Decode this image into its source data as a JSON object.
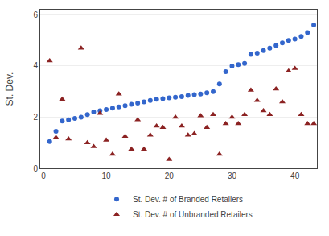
{
  "chart_data": {
    "type": "scatter",
    "ylabel": "St. Dev.",
    "series": [
      {
        "name": "St. Dev. # of Branded Retailers",
        "color": "#3366cc",
        "marker": "circle",
        "x": [
          1,
          2,
          3,
          4,
          5,
          6,
          7,
          8,
          9,
          10,
          11,
          12,
          13,
          14,
          15,
          16,
          17,
          18,
          19,
          20,
          21,
          22,
          23,
          24,
          25,
          26,
          27,
          28,
          29,
          30,
          31,
          32,
          33,
          34,
          35,
          36,
          37,
          38,
          39,
          40,
          41,
          42,
          43
        ],
        "values": [
          1.05,
          1.45,
          1.85,
          1.9,
          1.95,
          2.0,
          2.1,
          2.2,
          2.25,
          2.3,
          2.35,
          2.4,
          2.45,
          2.5,
          2.55,
          2.6,
          2.65,
          2.7,
          2.72,
          2.75,
          2.78,
          2.8,
          2.85,
          2.88,
          2.9,
          2.95,
          3.0,
          3.3,
          3.78,
          4.0,
          4.05,
          4.1,
          4.45,
          4.5,
          4.6,
          4.7,
          4.8,
          4.9,
          5.0,
          5.05,
          5.15,
          5.3,
          5.6
        ]
      },
      {
        "name": "St. Dev. # of Unbranded Retailers",
        "color": "#8b2222",
        "marker": "triangle-up",
        "x": [
          1,
          2,
          3,
          4,
          6,
          7,
          8,
          9,
          10,
          11,
          12,
          13,
          14,
          15,
          16,
          17,
          18,
          19,
          20,
          21,
          22,
          23,
          24,
          25,
          26,
          27,
          28,
          29,
          30,
          31,
          32,
          33,
          34,
          35,
          36,
          37,
          38,
          39,
          40,
          41,
          42,
          43
        ],
        "values": [
          4.2,
          1.2,
          2.7,
          1.15,
          4.7,
          1.0,
          0.85,
          2.15,
          1.1,
          0.55,
          2.9,
          1.25,
          0.75,
          1.9,
          0.75,
          1.3,
          1.65,
          1.6,
          0.35,
          2.0,
          1.65,
          1.3,
          1.35,
          2.05,
          1.6,
          2.1,
          0.55,
          1.75,
          2.0,
          1.75,
          2.1,
          3.05,
          2.65,
          2.25,
          2.1,
          3.1,
          2.6,
          3.8,
          3.9,
          2.1,
          1.75,
          1.75
        ]
      }
    ],
    "xlim": [
      -0.5,
      43.5
    ],
    "xticks": [
      0,
      10,
      20,
      30,
      40
    ],
    "ylim": [
      0,
      6.2
    ],
    "yticks": [
      0,
      2,
      4,
      6
    ],
    "grid": "y",
    "legend": "bottom"
  }
}
